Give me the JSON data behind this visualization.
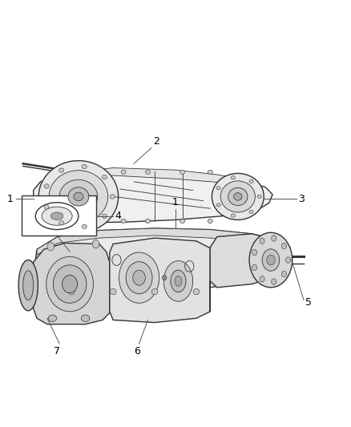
{
  "bg_color": "#ffffff",
  "line_color": "#333333",
  "fig_width": 4.38,
  "fig_height": 5.33,
  "dpi": 100,
  "label_fontsize": 9,
  "label_color": "#000000"
}
